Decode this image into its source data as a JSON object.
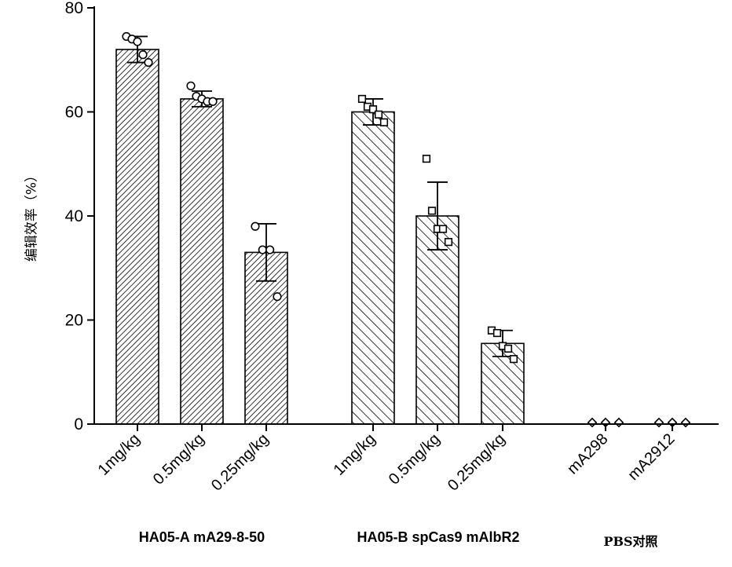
{
  "chart_data": {
    "type": "bar",
    "ylabel": "编辑效率（%）",
    "ylim": [
      0,
      80
    ],
    "yticks": [
      "0",
      "20",
      "40",
      "60",
      "80"
    ],
    "categories": [
      "1mg/kg",
      "0.5mg/kg",
      "0.25mg/kg",
      "1mg/kg",
      "0.5mg/kg",
      "0.25mg/kg",
      "mA298",
      "mA2912"
    ],
    "groups": [
      {
        "label": "HA05-A mA29-8-50",
        "categories": [
          0,
          1,
          2
        ],
        "hatch": "dense",
        "marker": "circle"
      },
      {
        "label": "HA05-B spCas9 mAlbR2",
        "categories": [
          3,
          4,
          5
        ],
        "hatch": "wide",
        "marker": "square"
      },
      {
        "label": "PBS对照",
        "categories": [
          6,
          7
        ],
        "hatch": "none",
        "marker": "diamond"
      }
    ],
    "values": [
      72,
      62.5,
      33,
      60,
      40,
      15.5,
      0,
      0
    ],
    "errors": [
      2.5,
      1.5,
      5.5,
      2.5,
      6.5,
      2.5,
      0,
      0
    ],
    "points": [
      [
        74.5,
        74,
        73.5,
        71,
        69.5
      ],
      [
        65,
        63,
        62.5,
        62,
        62
      ],
      [
        38,
        33.5,
        33.5,
        24.5
      ],
      [
        62.5,
        61,
        60.5,
        59.5,
        58
      ],
      [
        51,
        41,
        37.5,
        37.5,
        35
      ],
      [
        18,
        17.5,
        15,
        14.5,
        12.5
      ],
      [
        0.3,
        0.3,
        0.3
      ],
      [
        0.3,
        0.3,
        0.3
      ]
    ]
  }
}
